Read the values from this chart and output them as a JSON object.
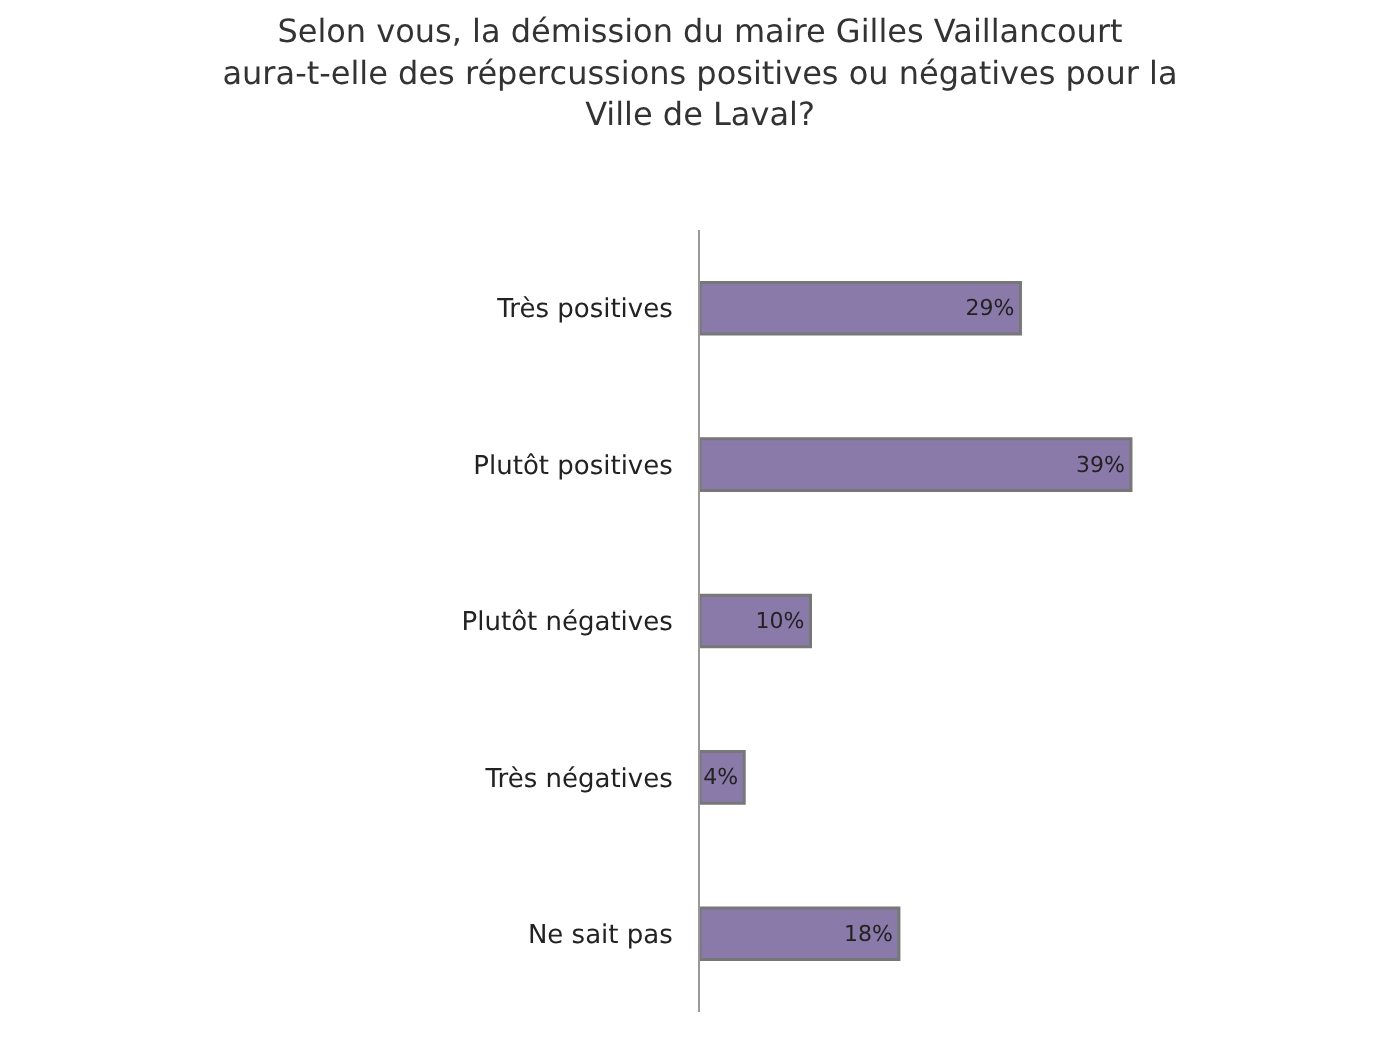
{
  "chart_data": {
    "type": "bar",
    "orientation": "horizontal",
    "title": "Selon vous, la démission du maire Gilles Vaillancourt aura-t-elle des répercussions positives ou négatives pour la Ville de Laval?",
    "categories": [
      "Très positives",
      "Plutôt positives",
      "Plutôt négatives",
      "Très négatives",
      "Ne sait pas"
    ],
    "values": [
      29,
      39,
      10,
      4,
      18
    ],
    "value_labels": [
      "29%",
      "39%",
      "10%",
      "4%",
      "18%"
    ],
    "color": "#8a7aaa",
    "tick_labels": "y"
  }
}
